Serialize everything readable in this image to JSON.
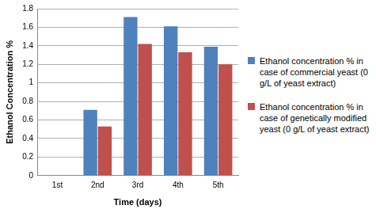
{
  "chart_data": {
    "type": "bar",
    "x_label": "Time (days)",
    "y_label": "Ethanol Concentration %",
    "categories": [
      "1st",
      "2nd",
      "3rd",
      "4th",
      "5th"
    ],
    "series": [
      {
        "name": "Ethanol concentration % in case of commercial yeast (0 g/L of yeast extract)",
        "color": "#4f81bd",
        "values": [
          0,
          0.71,
          1.71,
          1.61,
          1.39
        ]
      },
      {
        "name": "Ethanol concentration % in case of genetically modified yeast (0 g/L of yeast extract)",
        "color": "#c0504d",
        "values": [
          0,
          0.53,
          1.42,
          1.33,
          1.2
        ]
      }
    ],
    "ylim": [
      0,
      1.8
    ],
    "yticks": [
      0,
      0.2,
      0.4,
      0.6,
      0.8,
      1,
      1.2,
      1.4,
      1.6,
      1.8
    ],
    "grid": true,
    "legend": "right"
  }
}
